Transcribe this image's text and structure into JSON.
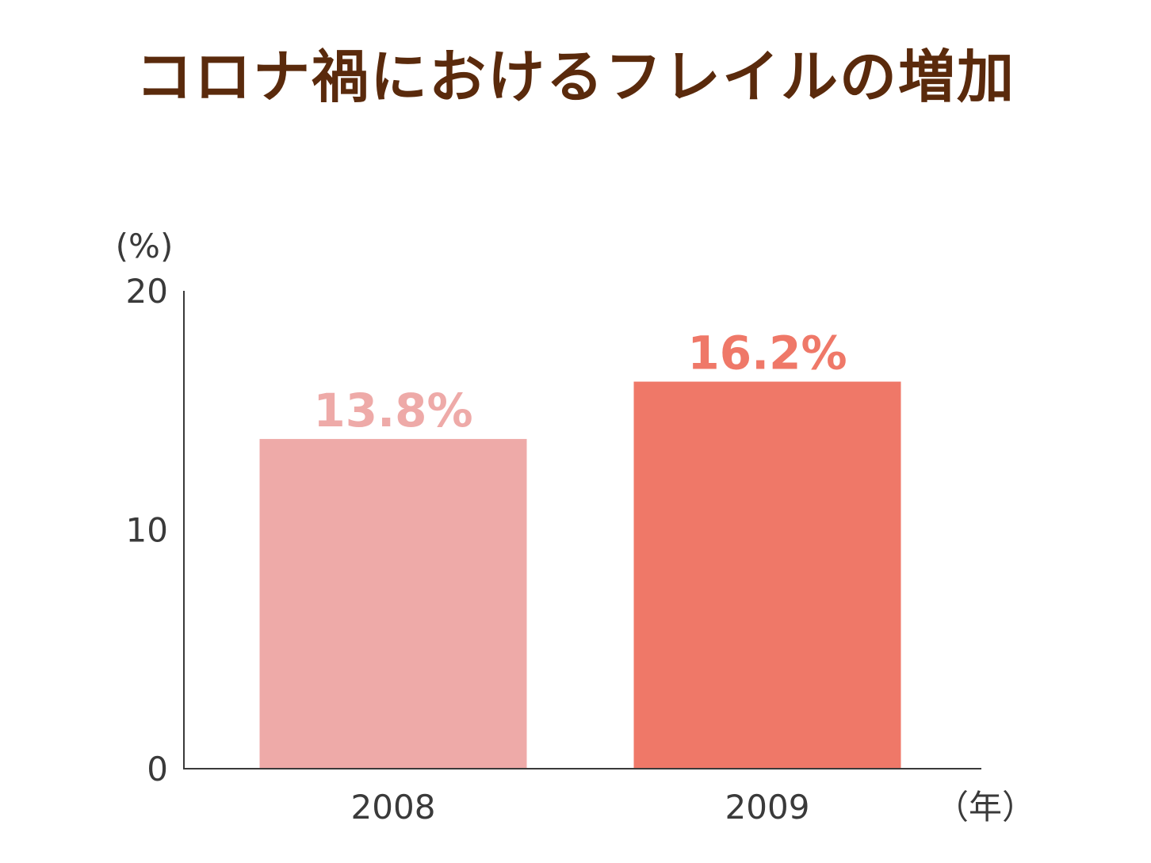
{
  "chart_data": {
    "type": "bar",
    "title": "コロナ禍におけるフレイルの増加",
    "categories": [
      "2008",
      "2009"
    ],
    "values": [
      13.8,
      16.2
    ],
    "value_labels": [
      "13.8%",
      "16.2%"
    ],
    "bar_colors": [
      "#eeaaa8",
      "#ef7868"
    ],
    "ylabel": "(%)",
    "xlabel": "（年）",
    "ylim": [
      0,
      20
    ],
    "yticks": [
      0,
      10,
      20
    ],
    "grid": false
  },
  "colors": {
    "title": "#5a2a0c",
    "axis": "#3a3a3a",
    "text": "#3a3a3a"
  }
}
